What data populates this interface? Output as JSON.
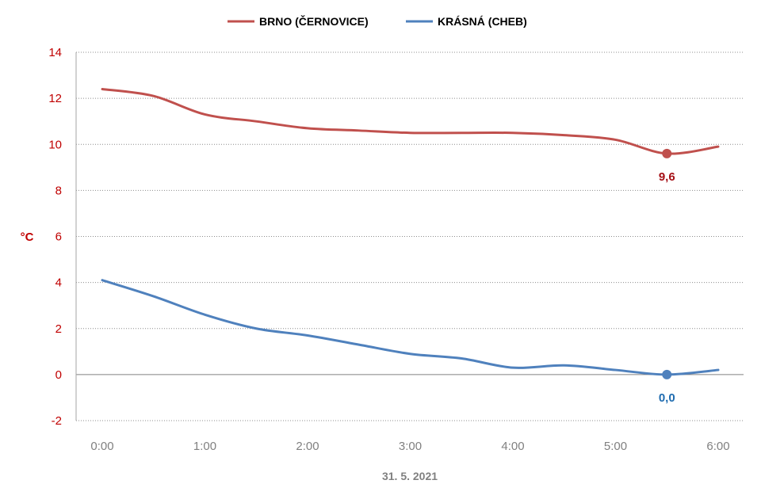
{
  "chart_data": {
    "type": "line",
    "title": "",
    "xlabel": "31. 5. 2021",
    "ylabel": "°C",
    "ylim": [
      -2,
      14
    ],
    "yticks": [
      -2,
      0,
      2,
      4,
      6,
      8,
      10,
      12,
      14
    ],
    "xlim": [
      0,
      6
    ],
    "xticks": [
      {
        "value": 0,
        "label": "0:00"
      },
      {
        "value": 1,
        "label": "1:00"
      },
      {
        "value": 2,
        "label": "2:00"
      },
      {
        "value": 3,
        "label": "3:00"
      },
      {
        "value": 4,
        "label": "4:00"
      },
      {
        "value": 5,
        "label": "5:00"
      },
      {
        "value": 6,
        "label": "6:00"
      }
    ],
    "grid": "horizontal-dotted",
    "legend_position": "top",
    "series": [
      {
        "name": "BRNO (ČERNOVICE)",
        "color": "#c0504d",
        "label_color": "#a50f15",
        "x": [
          0,
          0.5,
          1,
          1.5,
          2,
          2.5,
          3,
          3.5,
          4,
          4.5,
          5,
          5.5,
          6
        ],
        "y": [
          12.4,
          12.1,
          11.3,
          11.0,
          10.7,
          10.6,
          10.5,
          10.5,
          10.5,
          10.4,
          10.2,
          9.6,
          9.9
        ],
        "marker": {
          "x": 5.5,
          "y": 9.6,
          "label": "9,6"
        }
      },
      {
        "name": "KRÁSNÁ (CHEB)",
        "color": "#4f81bd",
        "label_color": "#1f6cb0",
        "x": [
          0,
          0.5,
          1,
          1.5,
          2,
          2.5,
          3,
          3.5,
          4,
          4.5,
          5,
          5.5,
          6
        ],
        "y": [
          4.1,
          3.4,
          2.6,
          2.0,
          1.7,
          1.3,
          0.9,
          0.7,
          0.3,
          0.4,
          0.2,
          0.0,
          0.2
        ],
        "marker": {
          "x": 5.5,
          "y": 0.0,
          "label": "0,0"
        }
      }
    ]
  }
}
